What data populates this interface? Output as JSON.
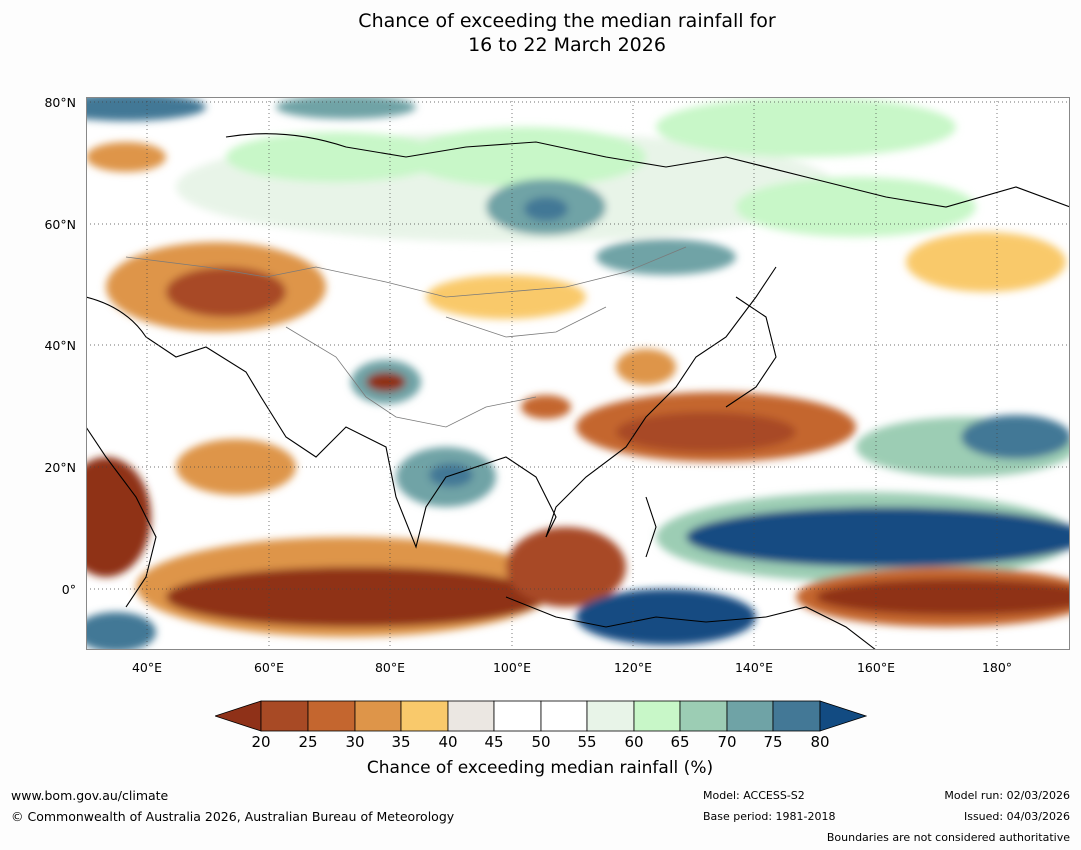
{
  "title": {
    "line1": "Chance of exceeding the median rainfall for",
    "line2": "16 to 22 March 2026"
  },
  "map": {
    "lat_labels": [
      "80°N",
      "60°N",
      "40°N",
      "20°N",
      "0°"
    ],
    "lon_labels": [
      "40°E",
      "60°E",
      "80°E",
      "100°E",
      "120°E",
      "140°E",
      "160°E",
      "180°"
    ],
    "lat_range": [
      -10,
      80
    ],
    "lon_range": [
      30,
      192
    ],
    "colors": {
      "c20": "#8f3118",
      "c25": "#a84a25",
      "c30": "#c4662f",
      "c35": "#de9549",
      "c40": "#f9c96b",
      "c45": "#ebe7e2",
      "c50": "#ffffff",
      "c55": "#ffffff",
      "c60": "#e8f4e8",
      "c65": "#c8f7c8",
      "c70": "#9ccdb4",
      "c75": "#6fa3a6",
      "c80": "#437896",
      "c80plus": "#124b82"
    }
  },
  "colorbar": {
    "ticks": [
      "20",
      "25",
      "30",
      "35",
      "40",
      "45",
      "50",
      "55",
      "60",
      "65",
      "70",
      "75",
      "80"
    ],
    "label": "Chance of exceeding median rainfall (%)"
  },
  "footer": {
    "website": "www.bom.gov.au/climate",
    "copyright": "© Commonwealth of Australia 2026, Australian Bureau of Meteorology",
    "model": "Model: ACCESS-S2",
    "base_period": "Base period: 1981-2018",
    "model_run": "Model run: 02/03/2026",
    "issued": "Issued: 04/03/2026",
    "disclaimer": "Boundaries are not considered authoritative"
  }
}
